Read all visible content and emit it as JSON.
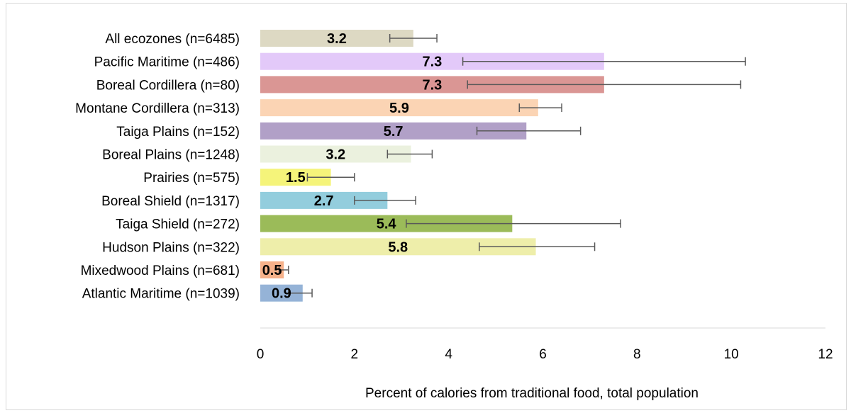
{
  "chart_data": {
    "type": "bar",
    "orientation": "horizontal",
    "title": "",
    "xlabel": "Percent of calories from traditional food, total population",
    "ylabel": "",
    "xlim": [
      0,
      12
    ],
    "xticks": [
      "0",
      "2",
      "4",
      "6",
      "8",
      "10",
      "12"
    ],
    "grid": false,
    "legend": "none",
    "categories": [
      "All ecozones (n=6485)",
      "Pacific Maritime (n=486)",
      "Boreal Cordillera (n=80)",
      "Montane Cordillera (n=313)",
      "Taiga Plains (n=152)",
      "Boreal Plains (n=1248)",
      "Prairies (n=575)",
      "Boreal Shield (n=1317)",
      "Taiga Shield (n=272)",
      "Hudson Plains (n=322)",
      "Mixedwood Plains (n=681)",
      "Atlantic Maritime (n=1039)"
    ],
    "values": [
      3.25,
      7.3,
      7.3,
      5.9,
      5.65,
      3.2,
      1.5,
      2.7,
      5.35,
      5.85,
      0.5,
      0.9
    ],
    "value_labels": [
      "3.2",
      "7.3",
      "7.3",
      "5.9",
      "5.7",
      "3.2",
      "1.5",
      "2.7",
      "5.4",
      "5.8",
      "0.5",
      "0.9"
    ],
    "error_low": [
      2.75,
      4.3,
      4.4,
      5.5,
      4.6,
      2.7,
      1.0,
      2.0,
      3.1,
      4.65,
      0.4,
      0.6
    ],
    "error_high": [
      3.75,
      10.3,
      10.2,
      6.4,
      6.8,
      3.65,
      2.0,
      3.3,
      7.65,
      7.1,
      0.6,
      1.1
    ],
    "colors": [
      "#ddd9c3",
      "#e3c9f9",
      "#da9694",
      "#fbd4b4",
      "#b1a0c7",
      "#ebf1de",
      "#f5f47a",
      "#93cddd",
      "#9bbb59",
      "#eeeeaa",
      "#f6b18a",
      "#95b3d7"
    ]
  }
}
